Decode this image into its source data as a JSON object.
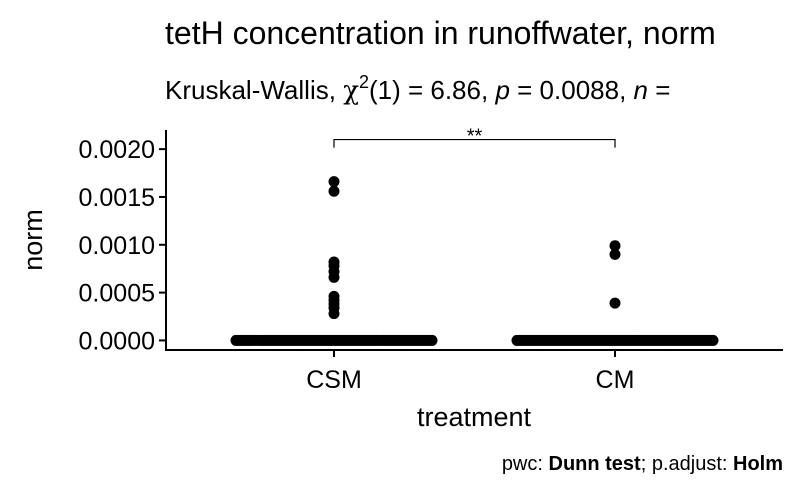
{
  "chart_data": {
    "type": "scatter",
    "title": "tetH concentration in runoffwater, norm",
    "subtitle": {
      "test": "Kruskal-Wallis,",
      "chi": "χ",
      "chi_sup": "2",
      "stat": "(1) = 6.86,",
      "p_label": "p",
      "p_value": "= 0.0088,",
      "n_label": "n",
      "n_value": "="
    },
    "xlabel": "treatment",
    "ylabel": "norm",
    "categories": [
      "CSM",
      "CM"
    ],
    "ylim": [
      -0.0001,
      0.0022
    ],
    "yticks": [
      0,
      0.0005,
      0.001,
      0.0015,
      0.002
    ],
    "ytick_labels": [
      "0.0000",
      "0.0005",
      "0.0010",
      "0.0015",
      "0.0020"
    ],
    "grid": false,
    "series": [
      {
        "category": "CSM",
        "values": [
          0,
          0,
          0,
          0,
          0,
          0,
          0,
          0,
          0,
          0,
          0,
          0,
          0,
          0,
          0,
          0,
          0,
          0,
          0,
          0,
          0,
          0,
          0,
          0,
          0,
          0,
          0,
          0,
          0,
          0,
          0,
          0,
          0,
          0,
          0,
          0,
          0,
          0,
          0,
          0,
          0,
          0,
          0,
          0,
          0,
          0,
          0,
          0,
          0,
          0,
          0,
          0,
          0,
          0,
          0,
          0,
          0,
          0,
          0,
          0,
          0,
          0,
          0,
          0,
          0,
          0,
          0,
          0,
          0,
          0,
          0,
          0,
          0,
          0,
          0,
          0,
          0,
          0,
          0,
          0,
          0,
          0,
          0.00166,
          0.00156,
          0.00082,
          0.00078,
          0.00072,
          0.00066,
          0.00046,
          0.00042,
          0.00038,
          0.00034,
          0.00028
        ]
      },
      {
        "category": "CM",
        "values": [
          0,
          0,
          0,
          0,
          0,
          0,
          0,
          0,
          0,
          0,
          0,
          0,
          0,
          0,
          0,
          0,
          0,
          0,
          0,
          0,
          0,
          0,
          0,
          0,
          0,
          0,
          0,
          0,
          0,
          0,
          0,
          0,
          0,
          0,
          0,
          0,
          0,
          0,
          0,
          0,
          0,
          0,
          0,
          0,
          0,
          0,
          0,
          0,
          0,
          0,
          0,
          0,
          0,
          0,
          0,
          0,
          0,
          0,
          0,
          0,
          0,
          0,
          0,
          0,
          0,
          0,
          0,
          0,
          0,
          0,
          0,
          0,
          0,
          0,
          0,
          0,
          0,
          0,
          0,
          0,
          0,
          0,
          0.00099,
          0.0009,
          0.00039
        ]
      }
    ],
    "comparison": {
      "group1": "CSM",
      "group2": "CM",
      "label": "**",
      "y": 0.0021
    },
    "caption": {
      "pwc_label": "pwc:",
      "pwc_value": "Dunn test",
      "sep": "; p.adjust:",
      "adjust_value": "Holm"
    }
  }
}
